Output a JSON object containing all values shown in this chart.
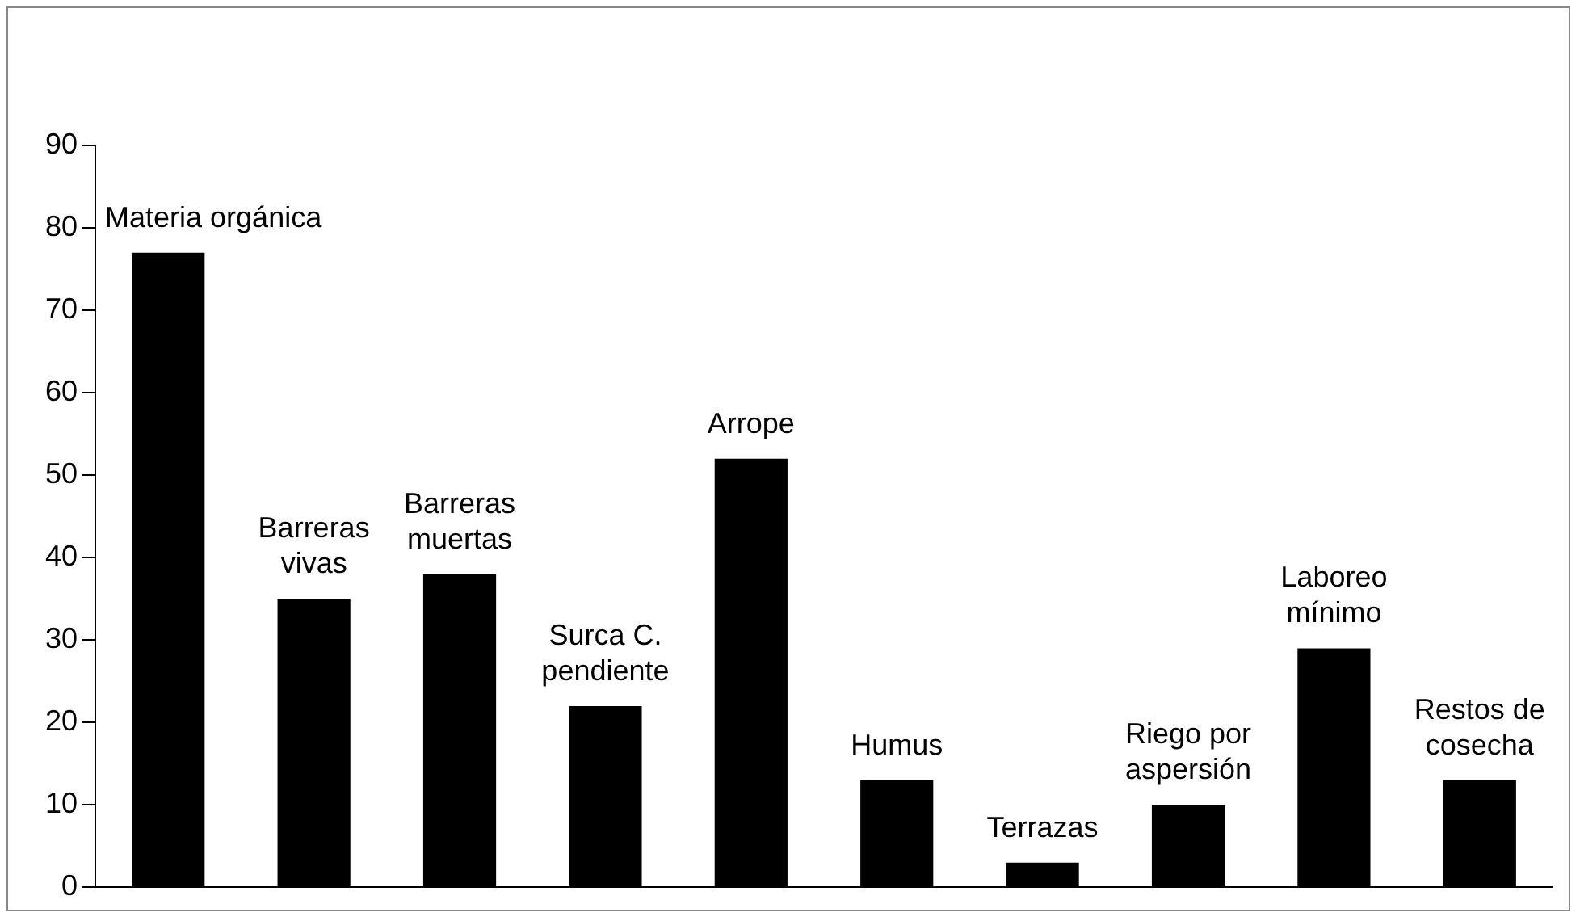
{
  "chart_data": {
    "type": "bar",
    "categories": [
      "Materia orgánica",
      "Barreras\nvivas",
      "Barreras\nmuertas",
      "Surca C.\npendiente",
      "Arrope",
      "Humus",
      "Terrazas",
      "Riego por\naspersión",
      "Laboreo\nmínimo",
      "Restos de\ncosecha"
    ],
    "values": [
      77,
      35,
      38,
      22,
      52,
      13,
      3,
      10,
      29,
      13
    ],
    "color": "#000000",
    "ylim": [
      0,
      90
    ],
    "yticks": [
      0,
      10,
      20,
      30,
      40,
      50,
      60,
      70,
      80,
      90
    ],
    "grid": false,
    "legend": false
  }
}
